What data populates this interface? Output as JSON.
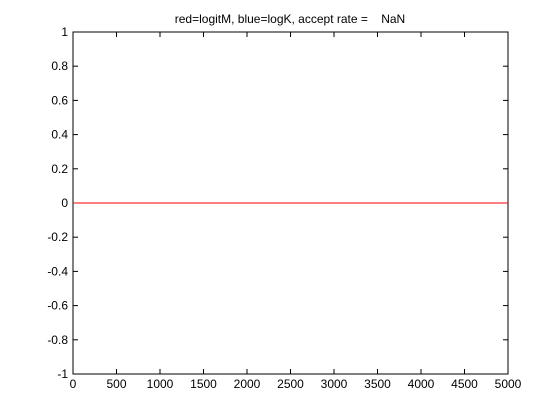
{
  "chart_data": {
    "type": "line",
    "title": "red=logitM, blue=logK, accept rate =    NaN",
    "xlabel": "",
    "ylabel": "",
    "xlim": [
      0,
      5000
    ],
    "ylim": [
      -1,
      1
    ],
    "xticks": [
      0,
      500,
      1000,
      1500,
      2000,
      2500,
      3000,
      3500,
      4000,
      4500,
      5000
    ],
    "yticks": [
      -1,
      -0.8,
      -0.6,
      -0.4,
      -0.2,
      0,
      0.2,
      0.4,
      0.6,
      0.8,
      1
    ],
    "xtick_labels": [
      "0",
      "500",
      "1000",
      "1500",
      "2000",
      "2500",
      "3000",
      "3500",
      "4000",
      "4500",
      "5000"
    ],
    "ytick_labels": [
      "-1",
      "-0.8",
      "-0.6",
      "-0.4",
      "-0.2",
      "0",
      "0.2",
      "0.4",
      "0.6",
      "0.8",
      "1"
    ],
    "grid": false,
    "series": [
      {
        "x": [
          0,
          5000
        ],
        "y": [
          0,
          0
        ],
        "color": "#0000ff"
      },
      {
        "x": [
          0,
          5000
        ],
        "y": [
          0,
          0
        ],
        "color": "#ff0000"
      }
    ]
  }
}
